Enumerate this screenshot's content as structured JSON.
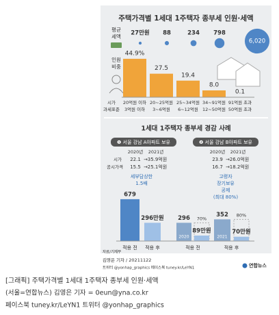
{
  "graphic": {
    "title": "주택가격별 1세대 1주택자 종부세 인원·세액",
    "avg_tax_label": [
      "평균",
      "세액"
    ],
    "share_label": [
      "인원",
      "비중"
    ],
    "avg_tax": {
      "values": [
        27,
        88,
        234,
        798,
        6020
      ],
      "value_labels": [
        "27만원",
        "88",
        "234",
        "798",
        "6,020"
      ]
    },
    "share": {
      "values": [
        44.9,
        27.5,
        19.4,
        8,
        0.1
      ],
      "value_labels": [
        "44.9%",
        "27.5",
        "19.4",
        "8.0",
        "0.1"
      ]
    },
    "price_row_label": "시가",
    "price_bands": [
      "20억원 이하",
      "20~25억원",
      "25~34억원",
      "34~91억원",
      "91억원 초과"
    ],
    "base_row_label": "과세표준",
    "base_bands": [
      "3억원 이하",
      "3~6억원",
      "6~12억원",
      "12~50억원",
      "50억원 초과"
    ],
    "cases_title": "1세대 1주택자 종부세 경감 사례",
    "row_labels": [
      "시가",
      "공시가격"
    ],
    "cases": [
      {
        "header": "❶ 서울 강남 A아파트 보유",
        "years": [
          "2020년",
          "2021년"
        ],
        "rows": [
          [
            "22.1",
            "35.9억원"
          ],
          [
            "15.5",
            "25.1억원"
          ]
        ],
        "note": [
          "세부담상한",
          "1.5배"
        ],
        "bars": [
          {
            "value": 679,
            "value_label": "679"
          },
          {
            "value": 296,
            "value_label": "296만원"
          }
        ],
        "bar_labels": [
          "적용 전",
          "적용 후"
        ]
      },
      {
        "header": "❷ 서울 강남 B아파트 보유",
        "years": [
          "2020년",
          "2021년"
        ],
        "rows": [
          [
            "23.9",
            "26.0억원"
          ],
          [
            "16.7",
            "18.2억원"
          ]
        ],
        "note": [
          "고령자",
          "장기보유",
          "공제",
          "(최대 80%)"
        ],
        "bars": [
          {
            "value": 296,
            "value_label": "296",
            "year": "2020"
          },
          {
            "value": 89,
            "value_label": "89만원",
            "cut": "70%"
          },
          {
            "value": 352,
            "value_label": "352",
            "year": "2021"
          },
          {
            "value": 70,
            "value_label": "70만원",
            "cut": "80%"
          }
        ],
        "bar_labels": [
          "적용 전",
          "적용 후"
        ]
      }
    ],
    "source": "자료/기재부",
    "byline": "김영은 기자 / 20211122",
    "sns": "트위터 @yonhap_graphics  페이스북 tuney.kr/LeYN1",
    "logo": "연합뉴스",
    "caption": [
      "[그래픽] 주택가격별 1세대 1주택자 종부세 인원·세액",
      "(서울=연합뉴스) 김영은 기자 = 0eun@yna.co.kr",
      "페이스북 tuney.kr/LeYN1 트위터 @yonhap_graphics"
    ]
  }
}
